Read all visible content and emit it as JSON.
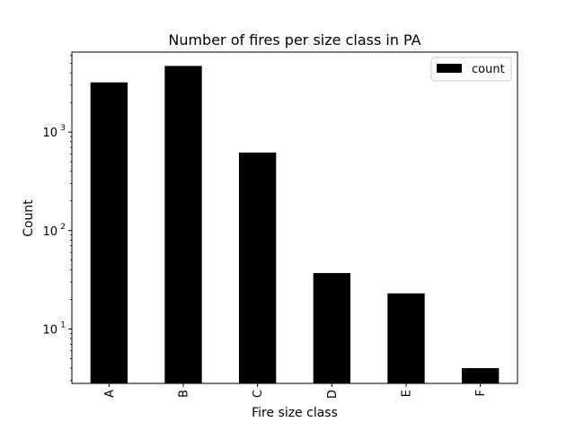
{
  "chart_data": {
    "type": "bar",
    "title": "Number of fires per size class in PA",
    "xlabel": "Fire size class",
    "ylabel": "Count",
    "yscale": "log",
    "ylim": [
      2.8,
      6500
    ],
    "yticks": [
      {
        "value": 10,
        "base": "10",
        "exp": "1"
      },
      {
        "value": 100,
        "base": "10",
        "exp": "2"
      },
      {
        "value": 1000,
        "base": "10",
        "exp": "3"
      }
    ],
    "categories": [
      "A",
      "B",
      "C",
      "D",
      "E",
      "F"
    ],
    "series": [
      {
        "name": "count",
        "values": [
          3200,
          4700,
          620,
          37,
          23,
          4
        ],
        "color": "#000000"
      }
    ],
    "legend": {
      "position": "top-right"
    },
    "grid": false
  }
}
